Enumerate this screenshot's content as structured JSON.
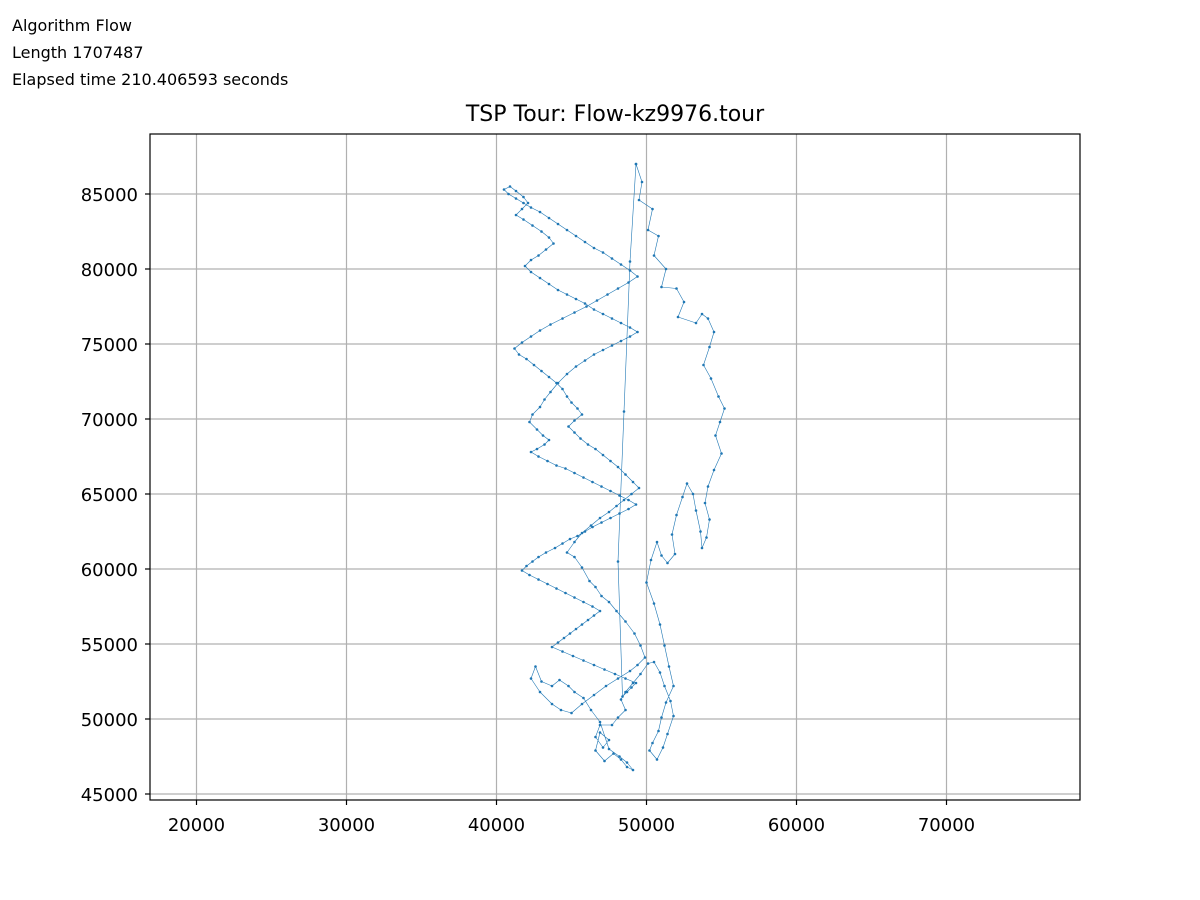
{
  "header_info": {
    "algorithm": "Algorithm Flow",
    "length": "Length 1707487",
    "elapsed": "Elapsed time 210.406593 seconds"
  },
  "chart_data": {
    "type": "line",
    "title": "TSP Tour: Flow-kz9976.tour",
    "xlabel": "",
    "ylabel": "",
    "xlim": [
      16900,
      78900
    ],
    "ylim": [
      44600,
      89000
    ],
    "xticks": [
      20000,
      30000,
      40000,
      50000,
      60000,
      70000
    ],
    "yticks": [
      45000,
      50000,
      55000,
      60000,
      65000,
      70000,
      75000,
      80000,
      85000
    ],
    "grid": true,
    "line_color": "#1f77b4",
    "marker": "point",
    "series": [
      {
        "closed": true,
        "x": [
          49300,
          49700,
          49500,
          50400,
          50100,
          50800,
          50500,
          51300,
          51000,
          52000,
          52500,
          52100,
          53300,
          53700,
          54100,
          54500,
          54200,
          53800,
          54300,
          54800,
          55200,
          54900,
          54600,
          55000,
          54500,
          54100,
          53900,
          54200,
          54000,
          53700,
          53600,
          53300,
          53100,
          52700,
          52400,
          52000,
          51700,
          51900,
          51400,
          51000,
          50700,
          50300,
          50000,
          50500,
          50900,
          51200,
          51500,
          51800,
          51300,
          51000,
          50800,
          50400,
          50200,
          50700,
          51100,
          51400,
          51800,
          51600,
          51200,
          50900,
          50500,
          50100,
          49600,
          49100,
          48600,
          48300,
          48600,
          48100,
          47700,
          46900,
          46600,
          47100,
          47500,
          46900,
          46600,
          47200,
          47800,
          48300,
          48700,
          49100,
          48700,
          48200,
          47500,
          46900,
          46300,
          45800,
          45200,
          44800,
          44200,
          43700,
          43000,
          42600,
          42300,
          42900,
          43700,
          44300,
          45000,
          45700,
          46500,
          47300,
          48100,
          48900,
          49400,
          49900,
          49600,
          49200,
          48600,
          48000,
          47500,
          47000,
          46600,
          46200,
          45700,
          45200,
          44700,
          45200,
          45700,
          46300,
          46900,
          47500,
          48000,
          48500,
          49000,
          49500,
          49100,
          48600,
          48100,
          47600,
          47100,
          46600,
          46100,
          45600,
          45200,
          44800,
          45200,
          45700,
          45400,
          45000,
          44700,
          44400,
          44000,
          43500,
          43000,
          42500,
          42000,
          41500,
          41200,
          41700,
          42300,
          42900,
          43600,
          44400,
          45200,
          46000,
          46700,
          47400,
          48100,
          48800,
          49400,
          48900,
          48300,
          47700,
          47100,
          46500,
          45900,
          45300,
          44700,
          44100,
          43500,
          42900,
          42300,
          41800,
          41300,
          40800,
          40500,
          40900,
          41300,
          41800,
          42100,
          41700,
          41300,
          41800,
          42400,
          43000,
          43500,
          43800,
          43300,
          42800,
          42300,
          41900,
          42300,
          42900,
          43500,
          44100,
          44700,
          45300,
          45900,
          46500,
          47100,
          47700,
          48300,
          48900,
          49400,
          48900,
          48300,
          47700,
          47100,
          46500,
          45900,
          45300,
          44700,
          44100,
          43600,
          43200,
          42900,
          42400,
          42200,
          42700,
          43100,
          43500,
          43200,
          42700,
          42300,
          42800,
          43400,
          44000,
          44600,
          45200,
          45800,
          46400,
          47000,
          47600,
          48200,
          48800,
          49300,
          48800,
          48200,
          47600,
          47000,
          46400,
          45900,
          45400,
          44900,
          44400,
          43900,
          43300,
          42800,
          42400,
          42000,
          41700,
          42200,
          42800,
          43400,
          44000,
          44600,
          45200,
          45800,
          46400,
          46900,
          46500,
          46100,
          45700,
          45300,
          44900,
          44500,
          44100,
          43700,
          44400,
          45100,
          45800,
          46500,
          47200,
          47900,
          48600,
          49300,
          49000,
          48700,
          48400,
          48100,
          48500,
          48900,
          49300
        ],
        "y": [
          87000,
          85800,
          84600,
          84000,
          82600,
          82200,
          80900,
          80000,
          78800,
          78700,
          77800,
          76800,
          76400,
          77000,
          76700,
          75800,
          74800,
          73600,
          72700,
          71500,
          70700,
          69800,
          68900,
          67700,
          66600,
          65500,
          64400,
          63300,
          62100,
          61400,
          62500,
          63900,
          65000,
          65700,
          64800,
          63600,
          62300,
          61000,
          60400,
          60900,
          61800,
          60600,
          59100,
          57700,
          56300,
          54900,
          53500,
          52200,
          51100,
          50100,
          49200,
          48400,
          47900,
          47300,
          48100,
          49000,
          50200,
          51200,
          52200,
          53100,
          53800,
          53700,
          53000,
          52400,
          51800,
          51300,
          50600,
          50100,
          49600,
          49600,
          48800,
          48100,
          48600,
          49100,
          47900,
          47200,
          47700,
          47300,
          46800,
          46600,
          47100,
          47500,
          48000,
          49800,
          50600,
          51400,
          51800,
          52200,
          52600,
          52200,
          52500,
          53500,
          52700,
          51800,
          51000,
          50600,
          50400,
          51000,
          51600,
          52200,
          52700,
          53200,
          53600,
          54100,
          54900,
          55700,
          56500,
          57200,
          57800,
          58200,
          58800,
          59200,
          60100,
          60800,
          61100,
          61800,
          62400,
          62900,
          63400,
          63800,
          64200,
          64600,
          65000,
          65400,
          65800,
          66300,
          66800,
          67200,
          67600,
          68000,
          68300,
          68700,
          69100,
          69500,
          69900,
          70300,
          70700,
          71100,
          71500,
          72000,
          72400,
          72800,
          73200,
          73600,
          74000,
          74300,
          74700,
          75100,
          75500,
          75900,
          76300,
          76700,
          77100,
          77500,
          77900,
          78300,
          78700,
          79100,
          79500,
          79900,
          80300,
          80700,
          81100,
          81400,
          81800,
          82200,
          82600,
          83000,
          83400,
          83800,
          84100,
          84400,
          84700,
          85000,
          85300,
          85500,
          85200,
          84800,
          84400,
          84000,
          83600,
          83300,
          82900,
          82500,
          82100,
          81700,
          81300,
          80900,
          80600,
          80200,
          79800,
          79400,
          79000,
          78600,
          78300,
          78000,
          77700,
          77300,
          77000,
          76700,
          76400,
          76100,
          75800,
          75500,
          75200,
          74900,
          74600,
          74300,
          73900,
          73500,
          73000,
          72400,
          71800,
          71300,
          70800,
          70300,
          69800,
          69300,
          68900,
          68600,
          68300,
          68000,
          67800,
          67500,
          67200,
          66900,
          66700,
          66400,
          66100,
          65800,
          65500,
          65200,
          64900,
          64600,
          64300,
          64000,
          63700,
          63400,
          63100,
          62800,
          62500,
          62200,
          62000,
          61700,
          61400,
          61100,
          60800,
          60500,
          60200,
          59900,
          59600,
          59300,
          59000,
          58700,
          58400,
          58100,
          57800,
          57500,
          57200,
          56900,
          56600,
          56300,
          56000,
          55700,
          55400,
          55100,
          54800,
          54500,
          54200,
          53900,
          53600,
          53300,
          53000,
          52700,
          52400,
          52100,
          51800,
          51500,
          60500,
          70500,
          80500,
          87000
        ]
      }
    ]
  }
}
